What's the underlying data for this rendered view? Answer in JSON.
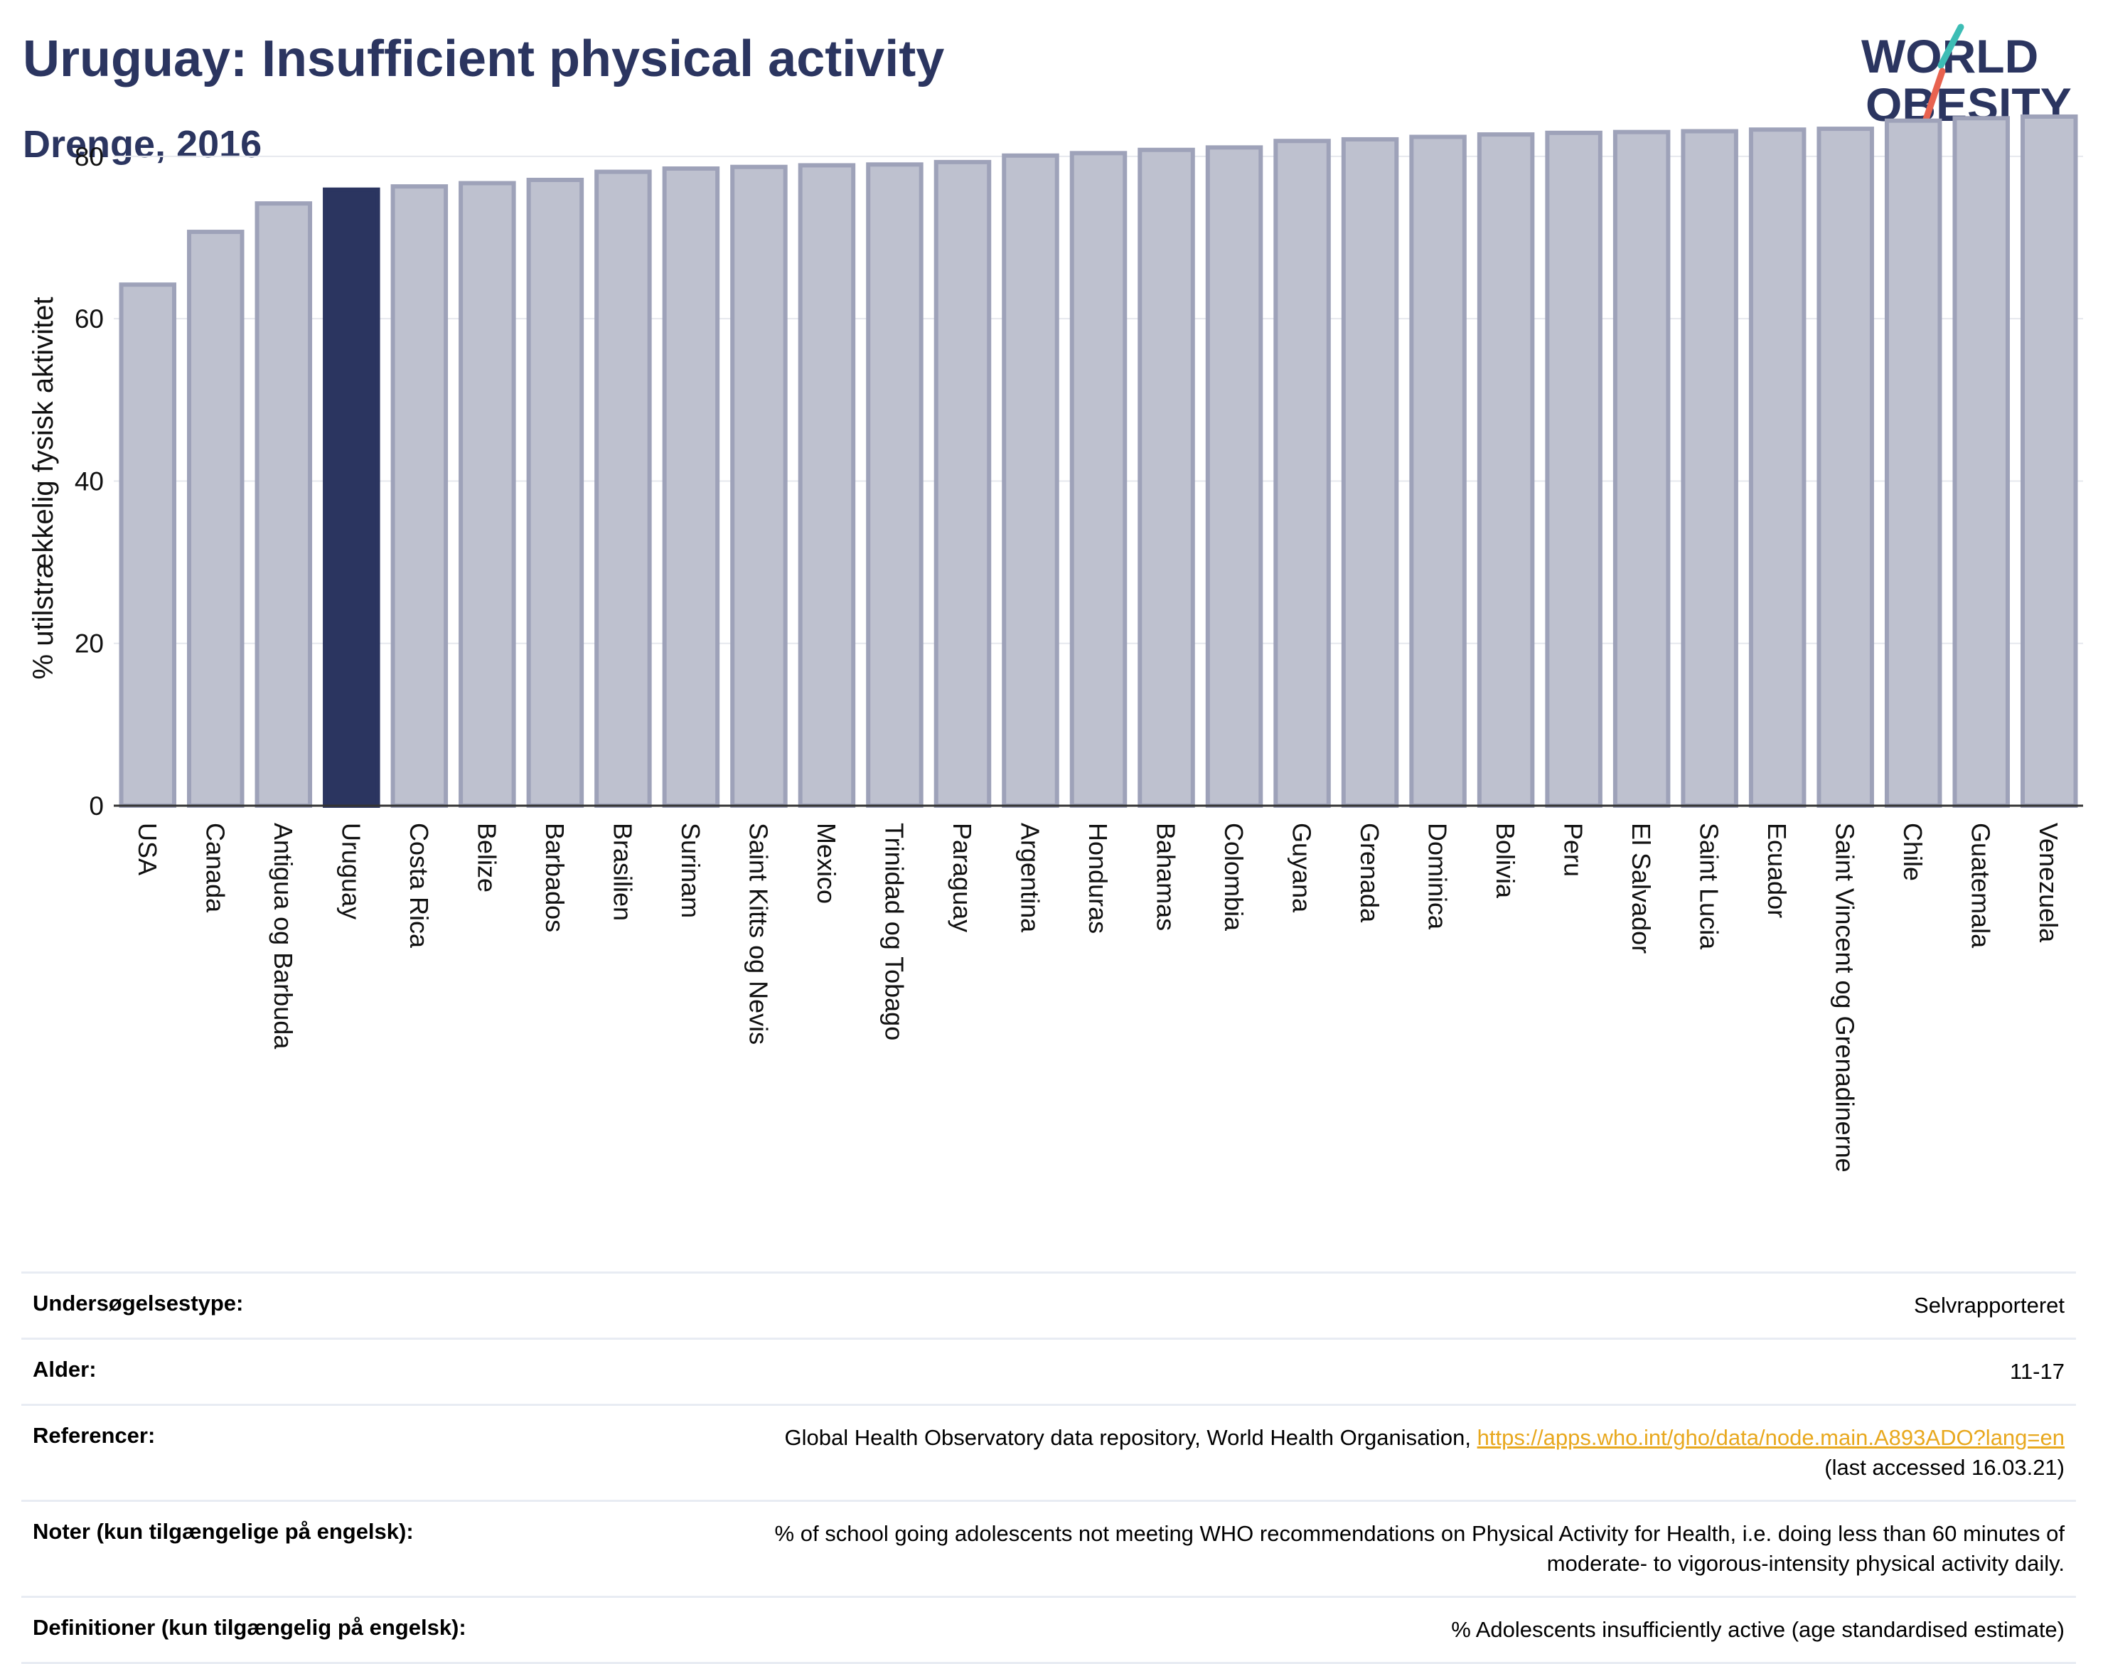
{
  "header": {
    "title": "Uruguay: Insufficient physical activity",
    "subtitle": "Drenge, 2016"
  },
  "logo": {
    "line1": "WORLD",
    "line2": "OBESITY",
    "text_color": "#2b3560",
    "slash_colors": [
      "#e8624f",
      "#3dbdb5"
    ]
  },
  "chart_data": {
    "type": "bar",
    "ylabel": "% utilstrækkelig fysisk aktivitet",
    "xlabel": "",
    "ylim": [
      0,
      87
    ],
    "yticks": [
      0,
      20,
      40,
      60,
      80
    ],
    "grid": true,
    "highlight": "Uruguay",
    "colors": {
      "bar": "#bec1cf",
      "bar_edge": "#9ea2b9",
      "highlight": "#2b3560"
    },
    "categories": [
      "USA",
      "Canada",
      "Antigua og Barbuda",
      "Uruguay",
      "Costa Rica",
      "Belize",
      "Barbados",
      "Brasilien",
      "Surinam",
      "Saint Kitts og Nevis",
      "Mexico",
      "Trinidad og Tobago",
      "Paraguay",
      "Argentina",
      "Honduras",
      "Bahamas",
      "Colombia",
      "Guyana",
      "Grenada",
      "Dominica",
      "Bolivia",
      "Peru",
      "El Salvador",
      "Saint Lucia",
      "Ecuador",
      "Saint Vincent og Grenadinerne",
      "Chile",
      "Guatemala",
      "Venezuela"
    ],
    "values": [
      64.2,
      70.7,
      74.2,
      75.9,
      76.3,
      76.7,
      77.1,
      78.1,
      78.5,
      78.7,
      78.9,
      79.0,
      79.3,
      80.1,
      80.4,
      80.8,
      81.1,
      81.9,
      82.1,
      82.4,
      82.7,
      82.9,
      83.0,
      83.1,
      83.3,
      83.4,
      84.4,
      84.7,
      84.9
    ]
  },
  "info": {
    "rows": [
      {
        "label": "Undersøgelsestype:",
        "value": "Selvrapporteret"
      },
      {
        "label": "Alder:",
        "value": "11-17"
      },
      {
        "label": "Referencer:",
        "value": "Global Health Observatory data repository, World Health Organisation,",
        "link": "https://apps.who.int/gho/data/node.main.A893ADO?lang=en",
        "value2": "(last accessed 16.03.21)"
      },
      {
        "label": "Noter (kun tilgængelige på engelsk):",
        "value": "% of school going adolescents not meeting WHO recommendations on Physical Activity for Health, i.e. doing less than 60 minutes of",
        "value2": "moderate- to vigorous-intensity physical activity daily."
      },
      {
        "label": "Definitioner (kun tilgængelig på engelsk):",
        "value": "% Adolescents insufficiently active (age standardised estimate)"
      }
    ]
  }
}
